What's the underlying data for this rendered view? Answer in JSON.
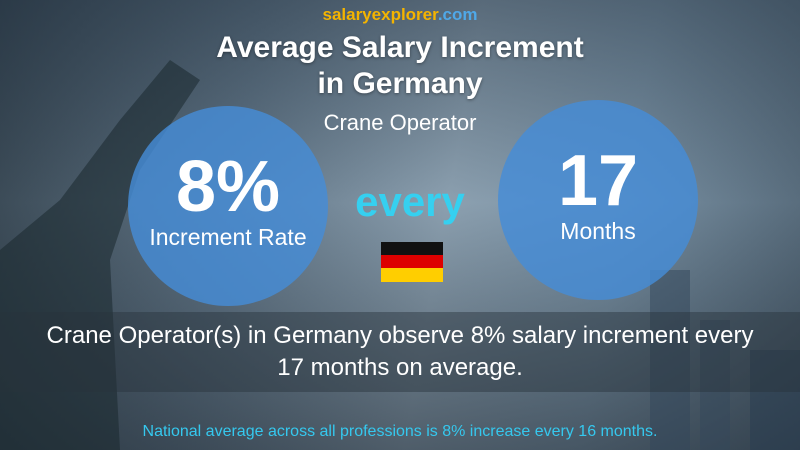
{
  "brand": {
    "part1": "salary",
    "part2": "explorer",
    "part3": ".com"
  },
  "title": {
    "line1": "Average Salary Increment",
    "line2": "in Germany"
  },
  "subtitle": "Crane Operator",
  "left_circle": {
    "value": "8%",
    "label": "Increment Rate"
  },
  "middle": "every",
  "right_circle": {
    "value": "17",
    "label": "Months"
  },
  "description": "Crane Operator(s) in Germany observe 8% salary increment every 17 months on average.",
  "footer": "National average across all professions is 8% increase every 16 months."
}
